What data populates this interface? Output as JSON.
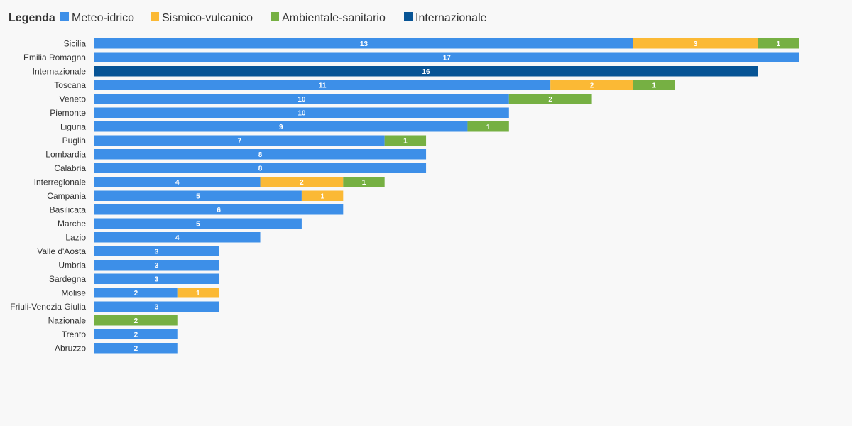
{
  "chart_data": {
    "type": "bar",
    "orientation": "horizontal",
    "stacked": true,
    "legend_title": "Legenda",
    "legend_position": "top-left",
    "grid": false,
    "categories": [
      "Sicilia",
      "Emilia Romagna",
      "Internazionale",
      "Toscana",
      "Veneto",
      "Piemonte",
      "Liguria",
      "Puglia",
      "Lombardia",
      "Calabria",
      "Interregionale",
      "Campania",
      "Basilicata",
      "Marche",
      "Lazio",
      "Valle d'Aosta",
      "Umbria",
      "Sardegna",
      "Molise",
      "Friuli-Venezia Giulia",
      "Nazionale",
      "Trento",
      "Abruzzo"
    ],
    "series": [
      {
        "name": "Meteo-idrico",
        "color": "#3d8fe8",
        "label_color": "#ffffff",
        "values": [
          13,
          17,
          0,
          11,
          10,
          10,
          9,
          7,
          8,
          8,
          4,
          5,
          6,
          5,
          4,
          3,
          3,
          3,
          2,
          3,
          0,
          2,
          2
        ]
      },
      {
        "name": "Sismico-vulcanico",
        "color": "#fbb935",
        "label_color": "#ffffff",
        "values": [
          3,
          0,
          0,
          2,
          0,
          0,
          0,
          0,
          0,
          0,
          2,
          1,
          0,
          0,
          0,
          0,
          0,
          0,
          1,
          0,
          0,
          0,
          0
        ]
      },
      {
        "name": "Ambientale-sanitario",
        "color": "#76b043",
        "label_color": "#ffffff",
        "values": [
          1,
          0,
          0,
          1,
          2,
          0,
          1,
          1,
          0,
          0,
          1,
          0,
          0,
          0,
          0,
          0,
          0,
          0,
          0,
          0,
          2,
          0,
          0
        ]
      },
      {
        "name": "Internazionale",
        "color": "#075495",
        "label_color": "#ffffff",
        "values": [
          0,
          0,
          16,
          0,
          0,
          0,
          0,
          0,
          0,
          0,
          0,
          0,
          0,
          0,
          0,
          0,
          0,
          0,
          0,
          0,
          0,
          0,
          0
        ]
      }
    ],
    "xlim": [
      0,
      17
    ]
  }
}
